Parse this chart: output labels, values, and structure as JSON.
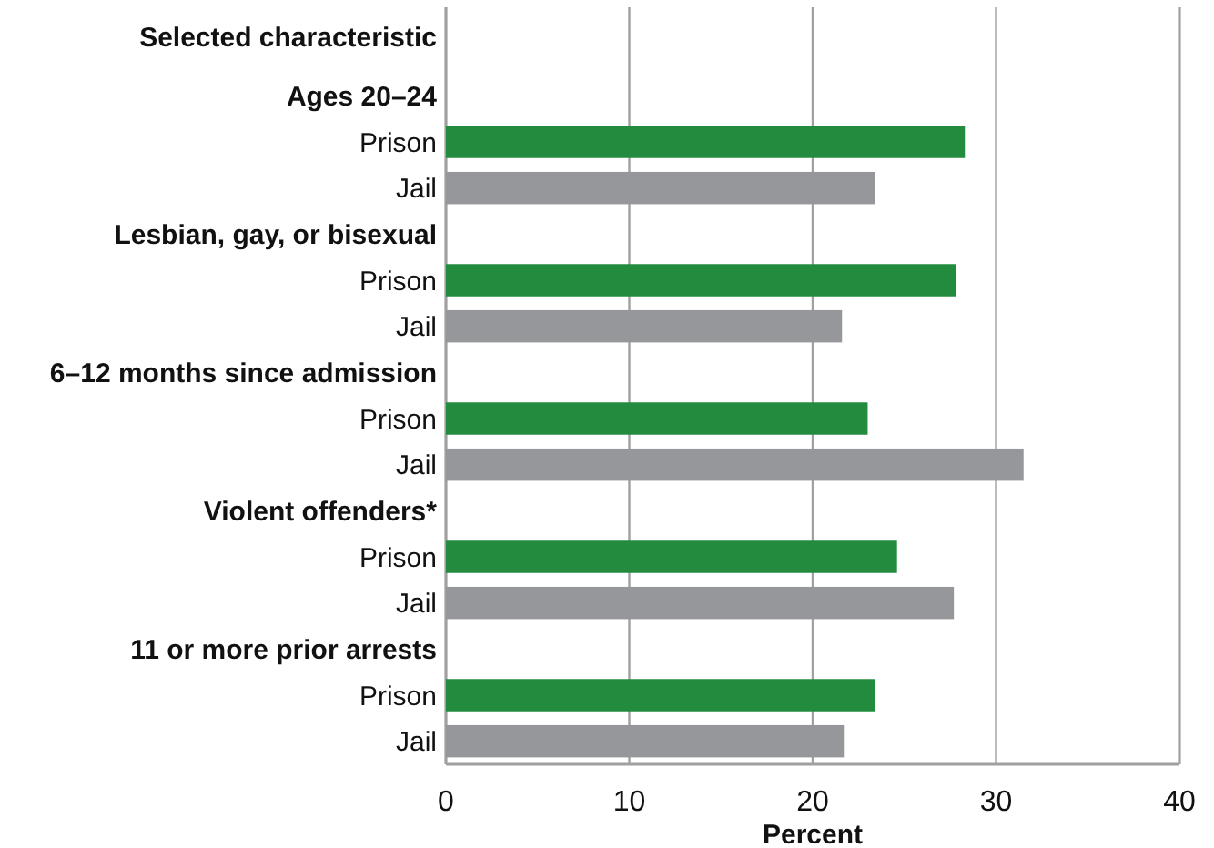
{
  "chart_data": {
    "type": "bar",
    "orientation": "horizontal",
    "ylabel": "Selected characteristic",
    "xlabel": "Percent",
    "categories": [
      "Ages 20–24",
      "Prison",
      "Jail",
      "Lesbian, gay, or bisexual",
      "Prison",
      "Jail",
      "6–12 months since admission",
      "Prison",
      "Jail",
      "Violent offenders*",
      "Prison",
      "Jail",
      "11 or more prior arrests",
      "Prison",
      "Jail"
    ],
    "values": [
      null,
      28.3,
      23.4,
      null,
      27.8,
      21.6,
      null,
      23.0,
      31.5,
      null,
      24.6,
      27.7,
      null,
      23.4,
      21.7
    ],
    "colors": [
      null,
      "#228b3e",
      "#96979b",
      null,
      "#228b3e",
      "#96979b",
      null,
      "#228b3e",
      "#96979b",
      null,
      "#228b3e",
      "#96979b",
      null,
      "#228b3e",
      "#96979b"
    ],
    "xlim": [
      0,
      40
    ],
    "xticks": [
      0,
      10,
      20,
      30,
      40
    ],
    "grid": "x"
  }
}
